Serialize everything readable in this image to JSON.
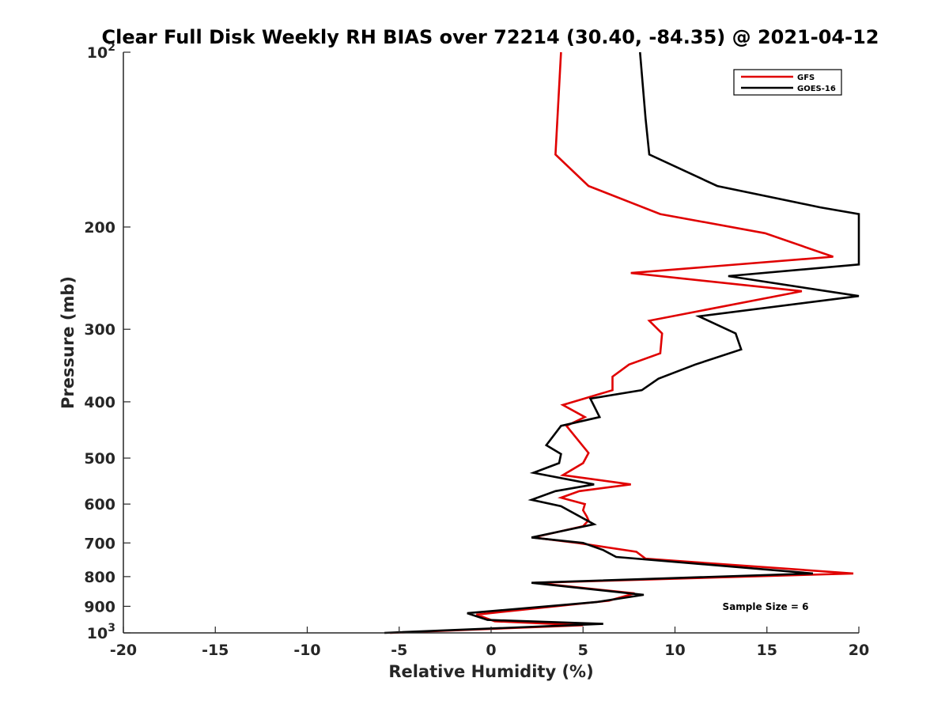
{
  "chart_data": {
    "type": "line",
    "title": "Clear Full Disk Weekly RH BIAS over 72214 (30.40, -84.35) @ 2021-04-12",
    "xlabel": "Relative Humidity (%)",
    "ylabel": "Pressure (mb)",
    "xlim": [
      -20,
      20
    ],
    "ylim": [
      100,
      1000
    ],
    "y_scale": "log",
    "y_reversed": true,
    "grid": false,
    "legend_placement": "top-right",
    "x_ticks": [
      {
        "value": -20,
        "label": "-20"
      },
      {
        "value": -15,
        "label": "-15"
      },
      {
        "value": -10,
        "label": "-10"
      },
      {
        "value": -5,
        "label": "-5"
      },
      {
        "value": 0,
        "label": "0"
      },
      {
        "value": 5,
        "label": "5"
      },
      {
        "value": 10,
        "label": "10"
      },
      {
        "value": 15,
        "label": "15"
      },
      {
        "value": 20,
        "label": "20"
      }
    ],
    "y_ticks": [
      {
        "value": 100,
        "label": "10",
        "sup": "2"
      },
      {
        "value": 200,
        "label": "200",
        "sup": ""
      },
      {
        "value": 300,
        "label": "300",
        "sup": ""
      },
      {
        "value": 400,
        "label": "400",
        "sup": ""
      },
      {
        "value": 500,
        "label": "500",
        "sup": ""
      },
      {
        "value": 600,
        "label": "600",
        "sup": ""
      },
      {
        "value": 700,
        "label": "700",
        "sup": ""
      },
      {
        "value": 800,
        "label": "800",
        "sup": ""
      },
      {
        "value": 900,
        "label": "900",
        "sup": ""
      },
      {
        "value": 1000,
        "label": "10",
        "sup": "3"
      }
    ],
    "series": [
      {
        "name": "GFS",
        "color": "#e00000",
        "points": [
          [
            3.8,
            100
          ],
          [
            3.5,
            150
          ],
          [
            5.3,
            170
          ],
          [
            9.2,
            190
          ],
          [
            14.9,
            205
          ],
          [
            18.6,
            225
          ],
          [
            7.6,
            240
          ],
          [
            16.9,
            258
          ],
          [
            8.6,
            290
          ],
          [
            9.3,
            305
          ],
          [
            9.2,
            330
          ],
          [
            7.5,
            345
          ],
          [
            6.6,
            362
          ],
          [
            6.6,
            382
          ],
          [
            3.9,
            405
          ],
          [
            5.1,
            425
          ],
          [
            4.1,
            440
          ],
          [
            5.3,
            490
          ],
          [
            5.0,
            510
          ],
          [
            3.9,
            535
          ],
          [
            7.6,
            555
          ],
          [
            4.8,
            570
          ],
          [
            3.8,
            585
          ],
          [
            5.1,
            600
          ],
          [
            5.0,
            615
          ],
          [
            5.2,
            630
          ],
          [
            5.3,
            640
          ],
          [
            5.0,
            655
          ],
          [
            2.3,
            685
          ],
          [
            4.7,
            700
          ],
          [
            7.9,
            725
          ],
          [
            8.4,
            745
          ],
          [
            19.7,
            790
          ],
          [
            2.4,
            820
          ],
          [
            7.8,
            855
          ],
          [
            6.4,
            880
          ],
          [
            -0.8,
            930
          ],
          [
            0.2,
            955
          ],
          [
            5.0,
            970
          ],
          [
            -5.5,
            1000
          ]
        ]
      },
      {
        "name": "GOES-16",
        "color": "#000000",
        "points": [
          [
            8.1,
            100
          ],
          [
            8.4,
            130
          ],
          [
            8.6,
            150
          ],
          [
            12.3,
            170
          ],
          [
            17.9,
            185
          ],
          [
            20.0,
            190
          ],
          [
            20.0,
            232
          ],
          [
            12.9,
            243
          ],
          [
            20.0,
            263
          ],
          [
            11.3,
            285
          ],
          [
            13.3,
            305
          ],
          [
            13.6,
            325
          ],
          [
            11.1,
            345
          ],
          [
            9.1,
            365
          ],
          [
            8.2,
            382
          ],
          [
            5.4,
            395
          ],
          [
            5.9,
            425
          ],
          [
            3.8,
            440
          ],
          [
            3.0,
            475
          ],
          [
            3.8,
            492
          ],
          [
            3.7,
            510
          ],
          [
            2.3,
            530
          ],
          [
            5.6,
            555
          ],
          [
            3.5,
            570
          ],
          [
            2.2,
            590
          ],
          [
            3.8,
            605
          ],
          [
            5.6,
            650
          ],
          [
            2.2,
            685
          ],
          [
            5.0,
            700
          ],
          [
            6.1,
            720
          ],
          [
            6.8,
            740
          ],
          [
            17.5,
            790
          ],
          [
            2.2,
            820
          ],
          [
            8.3,
            860
          ],
          [
            5.7,
            885
          ],
          [
            -1.3,
            925
          ],
          [
            -0.2,
            950
          ],
          [
            6.1,
            965
          ],
          [
            -5.8,
            1000
          ]
        ]
      }
    ],
    "annotations": [
      {
        "text": "Sample Size = 6"
      }
    ]
  }
}
